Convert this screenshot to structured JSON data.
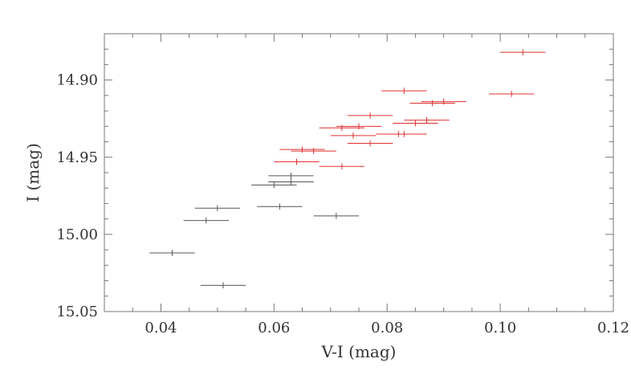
{
  "chart_data": {
    "type": "scatter",
    "title": "",
    "xlabel": "V-I (mag)",
    "ylabel": "I (mag)",
    "xlim": [
      0.03,
      0.12
    ],
    "ylim": [
      15.05,
      14.87
    ],
    "y_inverted": true,
    "grid": false,
    "x_ticks": [
      "0.04",
      "0.06",
      "0.08",
      "0.10",
      "0.12"
    ],
    "x_tick_values": [
      0.04,
      0.06,
      0.08,
      0.1,
      0.12
    ],
    "y_ticks": [
      "14.90",
      "14.95",
      "15.00",
      "15.05"
    ],
    "y_tick_values": [
      14.9,
      14.95,
      15.0,
      15.05
    ],
    "series": [
      {
        "color": "#555555",
        "points": [
          {
            "x": 0.042,
            "y": 15.012,
            "xerr": 0.004,
            "yerr": 0.002
          },
          {
            "x": 0.048,
            "y": 14.991,
            "xerr": 0.004,
            "yerr": 0.002
          },
          {
            "x": 0.05,
            "y": 14.983,
            "xerr": 0.004,
            "yerr": 0.002
          },
          {
            "x": 0.051,
            "y": 15.033,
            "xerr": 0.004,
            "yerr": 0.002
          },
          {
            "x": 0.06,
            "y": 14.968,
            "xerr": 0.004,
            "yerr": 0.002
          },
          {
            "x": 0.061,
            "y": 14.982,
            "xerr": 0.004,
            "yerr": 0.002
          },
          {
            "x": 0.063,
            "y": 14.962,
            "xerr": 0.004,
            "yerr": 0.002
          },
          {
            "x": 0.063,
            "y": 14.966,
            "xerr": 0.004,
            "yerr": 0.002
          },
          {
            "x": 0.071,
            "y": 14.988,
            "xerr": 0.004,
            "yerr": 0.002
          }
        ]
      },
      {
        "color": "#e03030",
        "points": [
          {
            "x": 0.064,
            "y": 14.953,
            "xerr": 0.004,
            "yerr": 0.002
          },
          {
            "x": 0.065,
            "y": 14.945,
            "xerr": 0.004,
            "yerr": 0.002
          },
          {
            "x": 0.067,
            "y": 14.946,
            "xerr": 0.004,
            "yerr": 0.002
          },
          {
            "x": 0.072,
            "y": 14.931,
            "xerr": 0.004,
            "yerr": 0.002
          },
          {
            "x": 0.072,
            "y": 14.956,
            "xerr": 0.004,
            "yerr": 0.002
          },
          {
            "x": 0.074,
            "y": 14.936,
            "xerr": 0.004,
            "yerr": 0.002
          },
          {
            "x": 0.075,
            "y": 14.93,
            "xerr": 0.004,
            "yerr": 0.002
          },
          {
            "x": 0.077,
            "y": 14.923,
            "xerr": 0.004,
            "yerr": 0.002
          },
          {
            "x": 0.077,
            "y": 14.941,
            "xerr": 0.004,
            "yerr": 0.002
          },
          {
            "x": 0.082,
            "y": 14.935,
            "xerr": 0.004,
            "yerr": 0.002
          },
          {
            "x": 0.083,
            "y": 14.935,
            "xerr": 0.004,
            "yerr": 0.002
          },
          {
            "x": 0.083,
            "y": 14.907,
            "xerr": 0.004,
            "yerr": 0.002
          },
          {
            "x": 0.085,
            "y": 14.928,
            "xerr": 0.004,
            "yerr": 0.002
          },
          {
            "x": 0.087,
            "y": 14.926,
            "xerr": 0.004,
            "yerr": 0.002
          },
          {
            "x": 0.088,
            "y": 14.915,
            "xerr": 0.004,
            "yerr": 0.002
          },
          {
            "x": 0.09,
            "y": 14.914,
            "xerr": 0.004,
            "yerr": 0.002
          },
          {
            "x": 0.102,
            "y": 14.909,
            "xerr": 0.004,
            "yerr": 0.002
          },
          {
            "x": 0.104,
            "y": 14.882,
            "xerr": 0.004,
            "yerr": 0.002
          }
        ]
      }
    ]
  }
}
